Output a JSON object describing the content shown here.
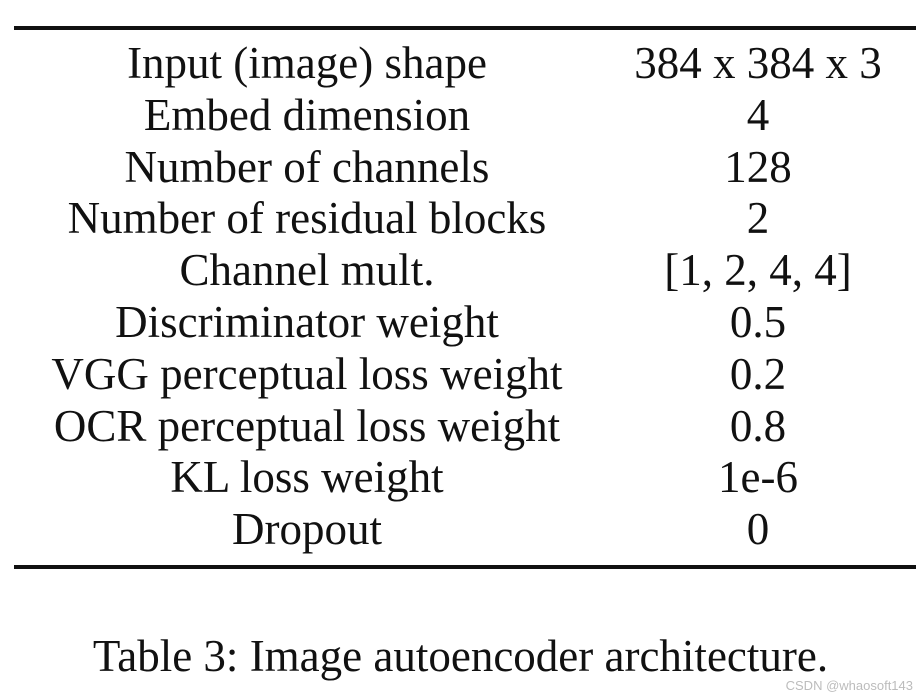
{
  "table": {
    "rows": [
      {
        "name": "Input (image) shape",
        "value": "384 x 384 x 3"
      },
      {
        "name": "Embed dimension",
        "value": "4"
      },
      {
        "name": "Number of channels",
        "value": "128"
      },
      {
        "name": "Number of residual blocks",
        "value": "2"
      },
      {
        "name": "Channel mult.",
        "value": "[1, 2, 4, 4]"
      },
      {
        "name": "Discriminator weight",
        "value": "0.5"
      },
      {
        "name": "VGG perceptual loss weight",
        "value": "0.2"
      },
      {
        "name": "OCR perceptual loss weight",
        "value": "0.8"
      },
      {
        "name": "KL loss weight",
        "value": "1e-6"
      },
      {
        "name": "Dropout",
        "value": "0"
      }
    ]
  },
  "caption": "Table 3: Image autoencoder architecture.",
  "watermark": "CSDN @whaosoft143"
}
